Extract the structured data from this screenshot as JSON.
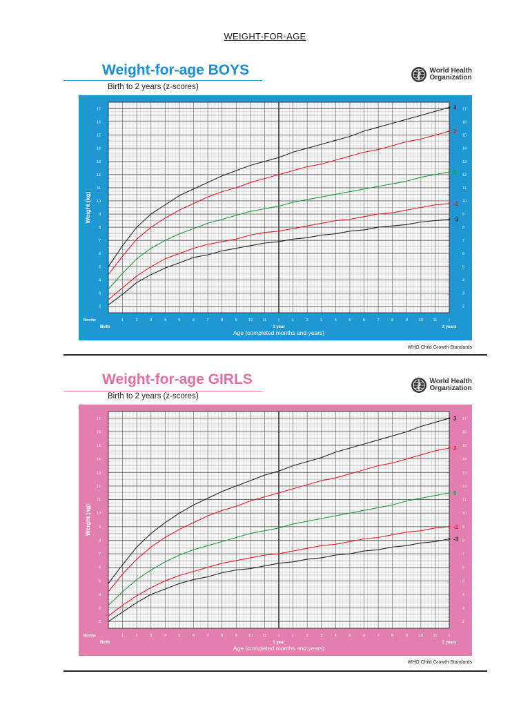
{
  "page": {
    "title": "WEIGHT-FOR-AGE"
  },
  "org": {
    "line1": "World Health",
    "line2": "Organization"
  },
  "chart_data": [
    {
      "type": "line",
      "title": "Weight-for-age BOYS",
      "subtitle": "Birth to 2 years (z-scores)",
      "xlabel": "Age (completed months and years)",
      "ylabel": "Weight (kg)",
      "months_label": "Months",
      "footer": "WHO Child Growth Standards",
      "x_tick_labels": [
        "Birth",
        "1",
        "2",
        "3",
        "4",
        "5",
        "6",
        "7",
        "8",
        "9",
        "10",
        "11",
        "1 year",
        "1",
        "2",
        "3",
        "4",
        "5",
        "6",
        "7",
        "8",
        "9",
        "10",
        "11",
        "2 years"
      ],
      "xlim": [
        0,
        24
      ],
      "ylim": [
        1.5,
        17.5
      ],
      "y_ticks": [
        2,
        3,
        4,
        5,
        6,
        7,
        8,
        9,
        10,
        11,
        12,
        13,
        14,
        15,
        16,
        17
      ],
      "theme_color": "#1f97d3",
      "title_color": "#1a8ed0",
      "x": [
        0,
        1,
        2,
        3,
        4,
        5,
        6,
        7,
        8,
        9,
        10,
        11,
        12,
        13,
        14,
        15,
        16,
        17,
        18,
        19,
        20,
        21,
        22,
        23,
        24
      ],
      "series": [
        {
          "name": "3",
          "color": "#222222",
          "values": [
            5.0,
            6.6,
            8.0,
            9.0,
            9.7,
            10.4,
            10.9,
            11.4,
            11.9,
            12.3,
            12.7,
            13.0,
            13.3,
            13.7,
            14.0,
            14.3,
            14.6,
            14.9,
            15.3,
            15.6,
            15.9,
            16.2,
            16.5,
            16.8,
            17.1
          ]
        },
        {
          "name": "2",
          "color": "#e11b2a",
          "values": [
            4.4,
            5.8,
            7.1,
            8.0,
            8.7,
            9.3,
            9.8,
            10.3,
            10.7,
            11.0,
            11.4,
            11.7,
            12.0,
            12.3,
            12.6,
            12.8,
            13.1,
            13.4,
            13.7,
            13.9,
            14.2,
            14.5,
            14.7,
            15.0,
            15.3
          ]
        },
        {
          "name": "0",
          "color": "#1f9a3c",
          "values": [
            3.3,
            4.5,
            5.6,
            6.4,
            7.0,
            7.5,
            7.9,
            8.3,
            8.6,
            8.9,
            9.2,
            9.4,
            9.6,
            9.9,
            10.1,
            10.3,
            10.5,
            10.7,
            10.9,
            11.1,
            11.3,
            11.5,
            11.8,
            12.0,
            12.2
          ]
        },
        {
          "name": "-2",
          "color": "#e11b2a",
          "values": [
            2.5,
            3.4,
            4.3,
            5.0,
            5.6,
            6.0,
            6.4,
            6.7,
            6.9,
            7.1,
            7.4,
            7.6,
            7.7,
            7.9,
            8.1,
            8.3,
            8.5,
            8.6,
            8.8,
            9.0,
            9.1,
            9.3,
            9.5,
            9.7,
            9.8
          ]
        },
        {
          "name": "-3",
          "color": "#222222",
          "values": [
            2.1,
            2.9,
            3.8,
            4.4,
            4.9,
            5.3,
            5.7,
            5.9,
            6.2,
            6.4,
            6.6,
            6.8,
            6.9,
            7.1,
            7.2,
            7.4,
            7.5,
            7.7,
            7.8,
            8.0,
            8.1,
            8.2,
            8.4,
            8.5,
            8.6
          ]
        }
      ]
    },
    {
      "type": "line",
      "title": "Weight-for-age GIRLS",
      "subtitle": "Birth to 2 years (z-scores)",
      "xlabel": "Age (completed months and years)",
      "ylabel": "Weight (kg)",
      "months_label": "Months",
      "footer": "WHO Child Growth Standards",
      "x_tick_labels": [
        "Birth",
        "1",
        "2",
        "3",
        "4",
        "5",
        "6",
        "7",
        "8",
        "9",
        "10",
        "11",
        "1 year",
        "1",
        "2",
        "3",
        "4",
        "5",
        "6",
        "7",
        "8",
        "9",
        "10",
        "11",
        "2 years"
      ],
      "xlim": [
        0,
        24
      ],
      "ylim": [
        1.5,
        17.5
      ],
      "y_ticks": [
        2,
        3,
        4,
        5,
        6,
        7,
        8,
        9,
        10,
        11,
        12,
        13,
        14,
        15,
        16,
        17
      ],
      "theme_color": "#e27fae",
      "title_color": "#df6fa5",
      "x": [
        0,
        1,
        2,
        3,
        4,
        5,
        6,
        7,
        8,
        9,
        10,
        11,
        12,
        13,
        14,
        15,
        16,
        17,
        18,
        19,
        20,
        21,
        22,
        23,
        24
      ],
      "series": [
        {
          "name": "3",
          "color": "#222222",
          "values": [
            4.8,
            6.2,
            7.5,
            8.5,
            9.3,
            10.0,
            10.6,
            11.1,
            11.6,
            12.0,
            12.4,
            12.8,
            13.1,
            13.5,
            13.8,
            14.1,
            14.5,
            14.8,
            15.1,
            15.4,
            15.7,
            16.0,
            16.4,
            16.7,
            17.0
          ]
        },
        {
          "name": "2",
          "color": "#e11b2a",
          "values": [
            4.2,
            5.5,
            6.6,
            7.5,
            8.2,
            8.8,
            9.3,
            9.8,
            10.2,
            10.5,
            10.9,
            11.2,
            11.5,
            11.8,
            12.1,
            12.4,
            12.6,
            12.9,
            13.2,
            13.5,
            13.7,
            14.0,
            14.3,
            14.6,
            14.8
          ]
        },
        {
          "name": "0",
          "color": "#1f9a3c",
          "values": [
            3.2,
            4.2,
            5.1,
            5.8,
            6.4,
            6.9,
            7.3,
            7.6,
            7.9,
            8.2,
            8.5,
            8.7,
            8.9,
            9.2,
            9.4,
            9.6,
            9.8,
            10.0,
            10.2,
            10.4,
            10.6,
            10.9,
            11.1,
            11.3,
            11.5
          ]
        },
        {
          "name": "-2",
          "color": "#e11b2a",
          "values": [
            2.4,
            3.2,
            3.9,
            4.5,
            5.0,
            5.4,
            5.7,
            6.0,
            6.3,
            6.5,
            6.7,
            6.9,
            7.0,
            7.2,
            7.4,
            7.6,
            7.7,
            7.9,
            8.1,
            8.2,
            8.4,
            8.6,
            8.7,
            8.9,
            9.0
          ]
        },
        {
          "name": "-3",
          "color": "#222222",
          "values": [
            2.0,
            2.7,
            3.4,
            4.0,
            4.4,
            4.8,
            5.1,
            5.3,
            5.6,
            5.8,
            5.9,
            6.1,
            6.3,
            6.4,
            6.6,
            6.7,
            6.9,
            7.0,
            7.2,
            7.3,
            7.5,
            7.6,
            7.8,
            7.9,
            8.1
          ]
        }
      ]
    }
  ]
}
